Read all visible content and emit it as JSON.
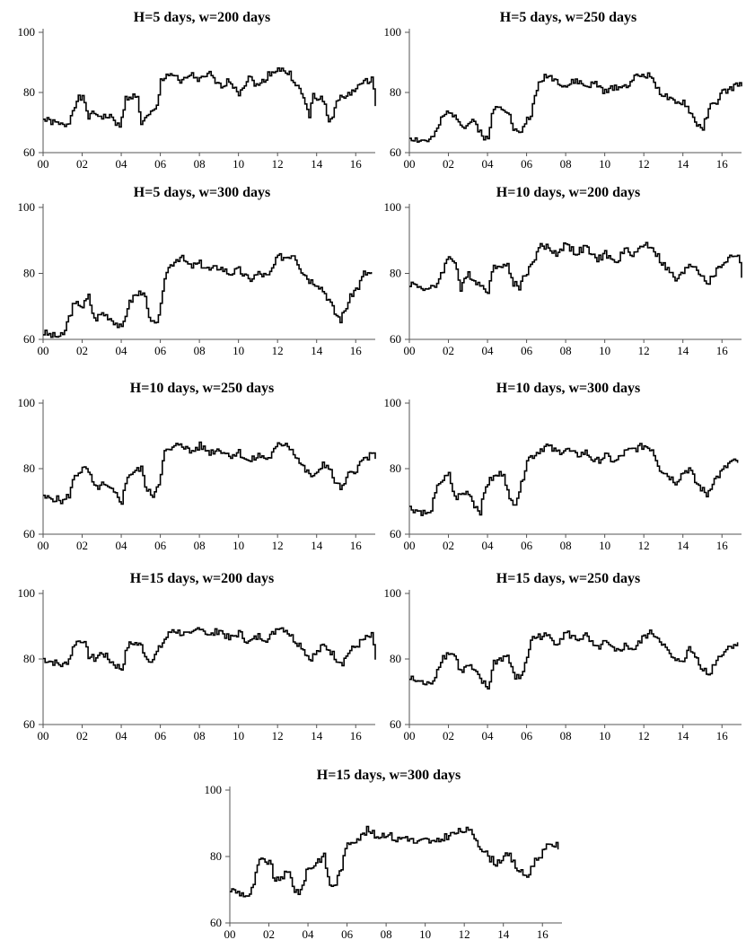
{
  "chart_data": [
    {
      "type": "line",
      "title": "H=5 days, w=200 days",
      "xlabel": "",
      "ylabel": "",
      "xlim": [
        0,
        17
      ],
      "ylim": [
        60,
        100
      ],
      "xticks": [
        "00",
        "02",
        "04",
        "06",
        "08",
        "10",
        "12",
        "14",
        "16"
      ],
      "yticks": [
        "60",
        "80",
        "100"
      ],
      "grid": false,
      "series": [
        {
          "x": [
            0,
            0.5,
            1,
            1.3,
            1.5,
            1.8,
            2,
            2.3,
            2.6,
            3,
            3.3,
            3.6,
            3.9,
            4.2,
            4.5,
            4.8,
            5,
            5.2,
            5.5,
            5.8,
            6,
            6.3,
            6.6,
            7,
            7.5,
            8,
            8.5,
            9,
            9.5,
            10,
            10.5,
            11,
            11.5,
            12,
            12.3,
            12.6,
            13,
            13.3,
            13.6,
            13.8,
            14,
            14.3,
            14.6,
            14.8,
            15,
            15.3,
            15.6,
            16,
            16.4,
            16.8,
            17
          ],
          "y": [
            71,
            70,
            69,
            70,
            75,
            78,
            78,
            72,
            73,
            72,
            72,
            71,
            68,
            78,
            79,
            78,
            70,
            71,
            73,
            75,
            84,
            86,
            86,
            83,
            86,
            84,
            86,
            82,
            84,
            80,
            85,
            82,
            86,
            88,
            87,
            86,
            82,
            78,
            72,
            79,
            78,
            78,
            70,
            72,
            78,
            78,
            79,
            82,
            83,
            85,
            76
          ]
        }
      ]
    },
    {
      "type": "line",
      "title": "H=5 days, w=250 days",
      "xlabel": "",
      "ylabel": "",
      "xlim": [
        0,
        17
      ],
      "ylim": [
        60,
        100
      ],
      "xticks": [
        "00",
        "02",
        "04",
        "06",
        "08",
        "10",
        "12",
        "14",
        "16"
      ],
      "yticks": [
        "60",
        "80",
        "100"
      ],
      "grid": false,
      "series": [
        {
          "x": [
            0,
            0.5,
            1,
            1.3,
            1.6,
            2,
            2.4,
            2.8,
            3,
            3.3,
            3.7,
            4,
            4.2,
            4.5,
            4.8,
            5,
            5.3,
            5.6,
            5.9,
            6.2,
            6.6,
            7,
            7.5,
            8,
            8.5,
            9,
            9.5,
            10,
            10.5,
            11,
            11.5,
            12,
            12.4,
            12.8,
            13.2,
            13.6,
            14,
            14.3,
            14.6,
            15,
            15.3,
            15.6,
            16,
            16.4,
            16.8,
            17
          ],
          "y": [
            65,
            64,
            64,
            66,
            71,
            74,
            72,
            68,
            70,
            70,
            66,
            64,
            73,
            76,
            75,
            74,
            68,
            66,
            70,
            73,
            83,
            86,
            84,
            82,
            84,
            82,
            83,
            80,
            82,
            82,
            85,
            86,
            85,
            80,
            78,
            76,
            77,
            74,
            70,
            68,
            75,
            76,
            80,
            81,
            83,
            82
          ]
        }
      ]
    },
    {
      "type": "line",
      "title": "H=5 days, w=300 days",
      "xlabel": "",
      "ylabel": "",
      "xlim": [
        0,
        17
      ],
      "ylim": [
        60,
        100
      ],
      "xticks": [
        "00",
        "02",
        "04",
        "06",
        "08",
        "10",
        "12",
        "14",
        "16"
      ],
      "yticks": [
        "60",
        "80",
        "100"
      ],
      "grid": false,
      "series": [
        {
          "x": [
            0,
            0.5,
            1,
            1.2,
            1.5,
            1.8,
            2,
            2.3,
            2.6,
            3,
            3.3,
            3.7,
            4,
            4.3,
            4.6,
            4.9,
            5.1,
            5.4,
            5.7,
            6,
            6.3,
            6.7,
            7,
            7.5,
            8,
            8.5,
            9,
            9.5,
            10,
            10.5,
            11,
            11.5,
            12,
            12.4,
            12.8,
            13.2,
            13.6,
            14,
            14.3,
            14.6,
            14.9,
            15.2,
            15.5,
            15.8,
            16.1,
            16.4,
            16.8
          ],
          "y": [
            62,
            61,
            61,
            65,
            70,
            71,
            70,
            73,
            66,
            68,
            67,
            65,
            63,
            70,
            73,
            74,
            75,
            66,
            64,
            70,
            81,
            84,
            85,
            82,
            83,
            81,
            82,
            80,
            81,
            78,
            80,
            79,
            85,
            85,
            86,
            81,
            78,
            77,
            75,
            72,
            68,
            66,
            70,
            74,
            76,
            80,
            80
          ]
        }
      ]
    },
    {
      "type": "line",
      "title": "H=10 days, w=200 days",
      "xlabel": "",
      "ylabel": "",
      "xlim": [
        0,
        17
      ],
      "ylim": [
        60,
        100
      ],
      "xticks": [
        "00",
        "02",
        "04",
        "06",
        "08",
        "10",
        "12",
        "14",
        "16"
      ],
      "yticks": [
        "60",
        "80",
        "100"
      ],
      "grid": false,
      "series": [
        {
          "x": [
            0,
            0.5,
            1,
            1.3,
            1.6,
            2,
            2.3,
            2.6,
            3,
            3.3,
            3.7,
            4,
            4.3,
            4.6,
            5,
            5.3,
            5.6,
            5.9,
            6.2,
            6.6,
            7,
            7.5,
            8,
            8.5,
            9,
            9.5,
            10,
            10.5,
            11,
            11.5,
            12,
            12.4,
            12.8,
            13.2,
            13.6,
            14,
            14.3,
            14.6,
            15,
            15.3,
            15.6,
            16,
            16.4,
            16.8,
            17
          ],
          "y": [
            77,
            76,
            75,
            76,
            80,
            85,
            84,
            75,
            80,
            78,
            76,
            75,
            82,
            83,
            82,
            77,
            76,
            80,
            82,
            88,
            88,
            86,
            89,
            86,
            88,
            84,
            86,
            83,
            87,
            86,
            89,
            88,
            84,
            81,
            78,
            80,
            83,
            82,
            79,
            77,
            80,
            83,
            85,
            86,
            79
          ]
        }
      ]
    },
    {
      "type": "line",
      "title": "H=10 days, w=250 days",
      "xlabel": "",
      "ylabel": "",
      "xlim": [
        0,
        17
      ],
      "ylim": [
        60,
        100
      ],
      "xticks": [
        "00",
        "02",
        "04",
        "06",
        "08",
        "10",
        "12",
        "14",
        "16"
      ],
      "yticks": [
        "60",
        "80",
        "100"
      ],
      "grid": false,
      "series": [
        {
          "x": [
            0,
            0.5,
            1,
            1.3,
            1.6,
            2,
            2.3,
            2.6,
            3,
            3.3,
            3.7,
            4,
            4.3,
            4.6,
            5,
            5.3,
            5.6,
            5.9,
            6.2,
            6.6,
            7,
            7.5,
            8,
            8.5,
            9,
            9.5,
            10,
            10.5,
            11,
            11.5,
            12,
            12.4,
            12.8,
            13.2,
            13.6,
            14,
            14.3,
            14.6,
            15,
            15.3,
            15.6,
            16,
            16.4,
            16.8,
            17
          ],
          "y": [
            71,
            71,
            70,
            72,
            78,
            80,
            79,
            74,
            75,
            74,
            72,
            70,
            78,
            79,
            80,
            73,
            72,
            76,
            85,
            86,
            88,
            85,
            87,
            85,
            86,
            84,
            85,
            82,
            84,
            83,
            87,
            88,
            85,
            81,
            78,
            78,
            82,
            80,
            75,
            74,
            78,
            80,
            83,
            84,
            84
          ]
        }
      ]
    },
    {
      "type": "line",
      "title": "H=10 days, w=300 days",
      "xlabel": "",
      "ylabel": "",
      "xlim": [
        0,
        17
      ],
      "ylim": [
        60,
        100
      ],
      "xticks": [
        "00",
        "02",
        "04",
        "06",
        "08",
        "10",
        "12",
        "14",
        "16"
      ],
      "yticks": [
        "60",
        "80",
        "100"
      ],
      "grid": false,
      "series": [
        {
          "x": [
            0,
            0.5,
            1,
            1.2,
            1.5,
            1.8,
            2,
            2.3,
            2.6,
            3,
            3.3,
            3.6,
            3.9,
            4.2,
            4.5,
            4.8,
            5.1,
            5.4,
            5.7,
            6,
            6.3,
            6.7,
            7,
            7.5,
            8,
            8.5,
            9,
            9.5,
            10,
            10.5,
            11,
            11.5,
            12,
            12.4,
            12.8,
            13.2,
            13.6,
            14,
            14.3,
            14.6,
            14.9,
            15.2,
            15.5,
            15.8,
            16.1,
            16.4,
            16.8
          ],
          "y": [
            68,
            67,
            66,
            70,
            76,
            77,
            78,
            71,
            72,
            73,
            69,
            67,
            75,
            77,
            78,
            79,
            70,
            70,
            75,
            83,
            84,
            86,
            87,
            85,
            86,
            84,
            85,
            82,
            84,
            82,
            85,
            86,
            87,
            86,
            80,
            78,
            76,
            79,
            80,
            76,
            74,
            72,
            76,
            78,
            80,
            82,
            82
          ]
        }
      ]
    },
    {
      "type": "line",
      "title": "H=15 days, w=200 days",
      "xlabel": "",
      "ylabel": "",
      "xlim": [
        0,
        17
      ],
      "ylim": [
        60,
        100
      ],
      "xticks": [
        "00",
        "02",
        "04",
        "06",
        "08",
        "10",
        "12",
        "14",
        "16"
      ],
      "yticks": [
        "60",
        "80",
        "100"
      ],
      "grid": false,
      "series": [
        {
          "x": [
            0,
            0.5,
            1,
            1.3,
            1.6,
            2,
            2.3,
            2.6,
            3,
            3.3,
            3.7,
            4,
            4.3,
            4.6,
            5,
            5.3,
            5.6,
            5.9,
            6.2,
            6.6,
            7,
            7.5,
            8,
            8.5,
            9,
            9.5,
            10,
            10.5,
            11,
            11.5,
            12,
            12.4,
            12.8,
            13.2,
            13.6,
            14,
            14.3,
            14.6,
            15,
            15.3,
            15.6,
            16,
            16.4,
            16.8,
            17
          ],
          "y": [
            80,
            79,
            78,
            80,
            85,
            86,
            81,
            80,
            82,
            80,
            78,
            77,
            84,
            85,
            84,
            80,
            80,
            83,
            86,
            89,
            88,
            87,
            90,
            87,
            89,
            86,
            88,
            85,
            87,
            86,
            90,
            89,
            86,
            84,
            80,
            82,
            84,
            83,
            80,
            79,
            82,
            84,
            86,
            87,
            80
          ]
        }
      ]
    },
    {
      "type": "line",
      "title": "H=15 days, w=250 days",
      "xlabel": "",
      "ylabel": "",
      "xlim": [
        0,
        17
      ],
      "ylim": [
        60,
        100
      ],
      "xticks": [
        "00",
        "02",
        "04",
        "06",
        "08",
        "10",
        "12",
        "14",
        "16"
      ],
      "yticks": [
        "60",
        "80",
        "100"
      ],
      "grid": false,
      "series": [
        {
          "x": [
            0,
            0.5,
            1,
            1.3,
            1.6,
            2,
            2.3,
            2.6,
            3,
            3.3,
            3.7,
            4,
            4.3,
            4.6,
            5,
            5.3,
            5.6,
            5.9,
            6.2,
            6.6,
            7,
            7.5,
            8,
            8.5,
            9,
            9.5,
            10,
            10.5,
            11,
            11.5,
            12,
            12.4,
            12.8,
            13.2,
            13.6,
            14,
            14.3,
            14.6,
            15,
            15.3,
            15.6,
            16,
            16.4,
            16.8
          ],
          "y": [
            74,
            73,
            72,
            75,
            80,
            82,
            81,
            76,
            78,
            76,
            73,
            71,
            79,
            80,
            81,
            75,
            74,
            78,
            86,
            87,
            87,
            85,
            88,
            86,
            87,
            83,
            85,
            82,
            84,
            83,
            87,
            88,
            86,
            82,
            79,
            80,
            83,
            81,
            77,
            75,
            79,
            82,
            84,
            85
          ]
        }
      ]
    },
    {
      "type": "line",
      "title": "H=15 days, w=300 days",
      "xlabel": "",
      "ylabel": "",
      "xlim": [
        0,
        17
      ],
      "ylim": [
        60,
        100
      ],
      "xticks": [
        "00",
        "02",
        "04",
        "06",
        "08",
        "10",
        "12",
        "14",
        "16"
      ],
      "yticks": [
        "60",
        "80",
        "100"
      ],
      "grid": false,
      "series": [
        {
          "x": [
            0,
            0.5,
            1,
            1.2,
            1.5,
            1.8,
            2,
            2.3,
            2.6,
            3,
            3.3,
            3.6,
            3.9,
            4.2,
            4.5,
            4.8,
            5.1,
            5.4,
            5.7,
            6,
            6.3,
            6.7,
            7,
            7.5,
            8,
            8.5,
            9,
            9.5,
            10,
            10.5,
            11,
            11.5,
            12,
            12.4,
            12.8,
            13.2,
            13.6,
            14,
            14.3,
            14.6,
            14.9,
            15.2,
            15.5,
            15.8,
            16.1,
            16.4,
            16.8
          ],
          "y": [
            70,
            69,
            68,
            72,
            79,
            78,
            79,
            72,
            74,
            75,
            70,
            69,
            76,
            77,
            79,
            80,
            71,
            72,
            77,
            84,
            85,
            86,
            88,
            86,
            87,
            85,
            86,
            84,
            85,
            84,
            86,
            87,
            88,
            87,
            83,
            80,
            78,
            80,
            80,
            77,
            75,
            74,
            78,
            80,
            82,
            84,
            83
          ]
        }
      ]
    }
  ]
}
